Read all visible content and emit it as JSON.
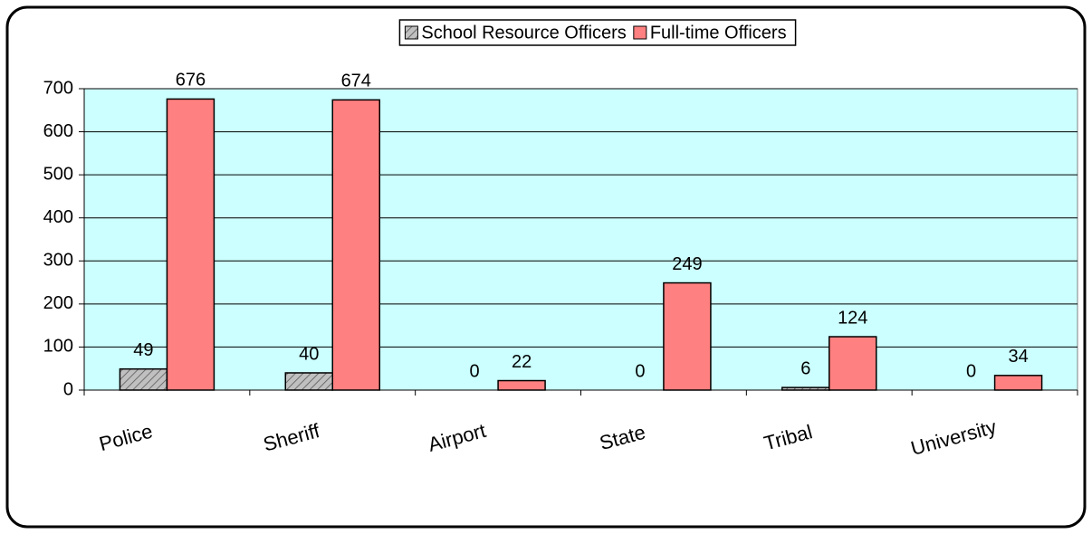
{
  "chart_data": {
    "type": "bar",
    "categories": [
      "Police",
      "Sheriff",
      "Airport",
      "State",
      "Tribal",
      "University"
    ],
    "series": [
      {
        "name": "School Resource Officers",
        "color": "#c0c0c0",
        "values": [
          49,
          40,
          0,
          0,
          6,
          0
        ]
      },
      {
        "name": "Full-time Officers",
        "color": "#ff8080",
        "values": [
          676,
          674,
          22,
          249,
          124,
          34
        ]
      }
    ],
    "ylim": [
      0,
      700
    ],
    "yticks": [
      0,
      100,
      200,
      300,
      400,
      500,
      600,
      700
    ],
    "grid": true,
    "legend": "top"
  }
}
